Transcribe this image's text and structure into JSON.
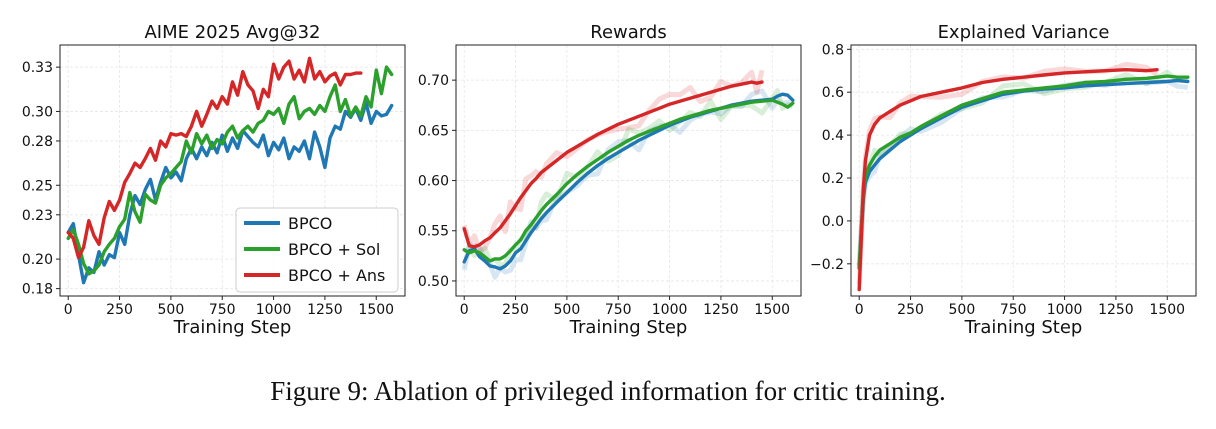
{
  "caption": "Figure 9: Ablation of privileged information for critic training.",
  "colors": {
    "BPCO": "#1f77b4",
    "BPCO + Sol": "#2ca02c",
    "BPCO + Ans": "#d62728"
  },
  "chart_data": [
    {
      "type": "line",
      "title": "AIME 2025 Avg@32",
      "xlabel": "Training Step",
      "ylabel": "",
      "xlim": [
        -40,
        1640
      ],
      "ylim": [
        0.175,
        0.345
      ],
      "xticks": [
        0,
        250,
        500,
        750,
        1000,
        1250,
        1500
      ],
      "yticks": [
        0.18,
        0.2,
        0.23,
        0.25,
        0.28,
        0.3,
        0.33
      ],
      "ytick_labels": [
        "0.18",
        "0.20",
        "0.23",
        "0.25",
        "0.28",
        "0.30",
        "0.33"
      ],
      "grid": true,
      "legend": "lower-right",
      "series": [
        {
          "name": "BPCO",
          "x": [
            0,
            25,
            50,
            75,
            100,
            125,
            150,
            175,
            200,
            225,
            250,
            275,
            300,
            325,
            350,
            375,
            400,
            425,
            450,
            475,
            500,
            525,
            550,
            575,
            600,
            625,
            650,
            675,
            700,
            725,
            750,
            775,
            800,
            825,
            850,
            875,
            900,
            925,
            950,
            975,
            1000,
            1025,
            1050,
            1075,
            1100,
            1125,
            1150,
            1175,
            1200,
            1225,
            1250,
            1275,
            1300,
            1325,
            1350,
            1375,
            1400,
            1425,
            1450,
            1475,
            1500,
            1525,
            1550,
            1575
          ],
          "y": [
            0.218,
            0.224,
            0.203,
            0.184,
            0.194,
            0.191,
            0.205,
            0.196,
            0.203,
            0.201,
            0.218,
            0.21,
            0.23,
            0.243,
            0.237,
            0.247,
            0.254,
            0.24,
            0.252,
            0.262,
            0.255,
            0.259,
            0.253,
            0.268,
            0.275,
            0.268,
            0.276,
            0.27,
            0.279,
            0.272,
            0.284,
            0.273,
            0.282,
            0.275,
            0.287,
            0.283,
            0.279,
            0.276,
            0.284,
            0.27,
            0.279,
            0.274,
            0.282,
            0.268,
            0.276,
            0.273,
            0.28,
            0.268,
            0.286,
            0.276,
            0.262,
            0.282,
            0.29,
            0.288,
            0.3,
            0.296,
            0.302,
            0.294,
            0.306,
            0.292,
            0.3,
            0.297,
            0.298,
            0.304
          ]
        },
        {
          "name": "BPCO + Sol",
          "x": [
            0,
            25,
            50,
            75,
            100,
            125,
            150,
            175,
            200,
            225,
            250,
            275,
            300,
            325,
            350,
            375,
            400,
            425,
            450,
            475,
            500,
            525,
            550,
            575,
            600,
            625,
            650,
            675,
            700,
            725,
            750,
            775,
            800,
            825,
            850,
            875,
            900,
            925,
            950,
            975,
            1000,
            1025,
            1050,
            1075,
            1100,
            1125,
            1150,
            1175,
            1200,
            1225,
            1250,
            1275,
            1300,
            1325,
            1350,
            1375,
            1400,
            1425,
            1450,
            1475,
            1500,
            1525,
            1550,
            1575
          ],
          "y": [
            0.214,
            0.22,
            0.21,
            0.197,
            0.19,
            0.192,
            0.196,
            0.205,
            0.21,
            0.214,
            0.222,
            0.227,
            0.245,
            0.232,
            0.225,
            0.244,
            0.24,
            0.238,
            0.25,
            0.255,
            0.258,
            0.262,
            0.266,
            0.28,
            0.272,
            0.285,
            0.278,
            0.284,
            0.275,
            0.281,
            0.278,
            0.286,
            0.29,
            0.282,
            0.287,
            0.29,
            0.286,
            0.292,
            0.294,
            0.3,
            0.298,
            0.302,
            0.292,
            0.305,
            0.31,
            0.295,
            0.3,
            0.302,
            0.298,
            0.304,
            0.3,
            0.31,
            0.318,
            0.3,
            0.308,
            0.297,
            0.303,
            0.297,
            0.31,
            0.303,
            0.328,
            0.312,
            0.33,
            0.325
          ]
        },
        {
          "name": "BPCO + Ans",
          "x": [
            0,
            25,
            50,
            75,
            100,
            125,
            150,
            175,
            200,
            225,
            250,
            275,
            300,
            325,
            350,
            375,
            400,
            425,
            450,
            475,
            500,
            525,
            550,
            575,
            600,
            625,
            650,
            675,
            700,
            725,
            750,
            775,
            800,
            825,
            850,
            875,
            900,
            925,
            950,
            975,
            1000,
            1025,
            1050,
            1075,
            1100,
            1125,
            1150,
            1175,
            1200,
            1225,
            1250,
            1275,
            1300,
            1325,
            1350,
            1375,
            1400,
            1425
          ],
          "y": [
            0.218,
            0.214,
            0.201,
            0.208,
            0.226,
            0.216,
            0.21,
            0.228,
            0.239,
            0.233,
            0.24,
            0.252,
            0.258,
            0.265,
            0.262,
            0.268,
            0.275,
            0.267,
            0.28,
            0.276,
            0.285,
            0.284,
            0.285,
            0.283,
            0.29,
            0.3,
            0.29,
            0.298,
            0.307,
            0.302,
            0.31,
            0.305,
            0.32,
            0.311,
            0.327,
            0.318,
            0.314,
            0.302,
            0.315,
            0.31,
            0.332,
            0.322,
            0.33,
            0.334,
            0.322,
            0.328,
            0.32,
            0.336,
            0.322,
            0.327,
            0.32,
            0.324,
            0.326,
            0.318,
            0.325,
            0.325,
            0.326,
            0.326
          ]
        }
      ]
    },
    {
      "type": "line",
      "title": "Rewards",
      "xlabel": "Training Step",
      "ylabel": "",
      "xlim": [
        -40,
        1640
      ],
      "ylim": [
        0.485,
        0.735
      ],
      "xticks": [
        0,
        250,
        500,
        750,
        1000,
        1250,
        1500
      ],
      "yticks": [
        0.5,
        0.55,
        0.6,
        0.65,
        0.7
      ],
      "ytick_labels": [
        "0.50",
        "0.55",
        "0.60",
        "0.65",
        "0.70"
      ],
      "grid": true,
      "series": [
        {
          "name": "BPCO",
          "x": [
            0,
            25,
            50,
            75,
            100,
            125,
            150,
            175,
            200,
            225,
            250,
            275,
            300,
            325,
            350,
            375,
            400,
            450,
            500,
            550,
            600,
            650,
            700,
            750,
            800,
            850,
            900,
            950,
            1000,
            1050,
            1100,
            1150,
            1200,
            1250,
            1300,
            1350,
            1400,
            1450,
            1500,
            1525,
            1550,
            1575,
            1600
          ],
          "y": [
            0.519,
            0.53,
            0.532,
            0.524,
            0.52,
            0.515,
            0.514,
            0.512,
            0.515,
            0.52,
            0.528,
            0.532,
            0.54,
            0.548,
            0.555,
            0.562,
            0.568,
            0.578,
            0.588,
            0.598,
            0.607,
            0.615,
            0.622,
            0.628,
            0.634,
            0.64,
            0.645,
            0.65,
            0.655,
            0.659,
            0.663,
            0.666,
            0.669,
            0.672,
            0.675,
            0.677,
            0.679,
            0.68,
            0.681,
            0.684,
            0.686,
            0.685,
            0.68
          ]
        },
        {
          "name": "BPCO + Sol",
          "x": [
            0,
            25,
            50,
            75,
            100,
            125,
            150,
            175,
            200,
            225,
            250,
            275,
            300,
            325,
            350,
            375,
            400,
            450,
            500,
            550,
            600,
            650,
            700,
            750,
            800,
            850,
            900,
            950,
            1000,
            1050,
            1100,
            1150,
            1200,
            1250,
            1300,
            1350,
            1400,
            1450,
            1500,
            1525,
            1550,
            1575,
            1600
          ],
          "y": [
            0.531,
            0.528,
            0.53,
            0.528,
            0.524,
            0.52,
            0.522,
            0.522,
            0.525,
            0.53,
            0.536,
            0.541,
            0.55,
            0.556,
            0.563,
            0.57,
            0.576,
            0.586,
            0.597,
            0.606,
            0.614,
            0.621,
            0.628,
            0.634,
            0.64,
            0.645,
            0.649,
            0.653,
            0.657,
            0.661,
            0.664,
            0.667,
            0.67,
            0.672,
            0.674,
            0.676,
            0.678,
            0.679,
            0.68,
            0.678,
            0.676,
            0.673,
            0.677
          ]
        },
        {
          "name": "BPCO + Ans",
          "x": [
            0,
            25,
            50,
            75,
            100,
            125,
            150,
            175,
            200,
            225,
            250,
            275,
            300,
            325,
            350,
            375,
            400,
            450,
            500,
            550,
            600,
            650,
            700,
            750,
            800,
            850,
            900,
            950,
            1000,
            1050,
            1100,
            1150,
            1200,
            1250,
            1300,
            1350,
            1400,
            1425,
            1450
          ],
          "y": [
            0.552,
            0.535,
            0.534,
            0.536,
            0.54,
            0.543,
            0.548,
            0.553,
            0.56,
            0.567,
            0.575,
            0.583,
            0.59,
            0.597,
            0.602,
            0.608,
            0.612,
            0.62,
            0.628,
            0.634,
            0.64,
            0.646,
            0.651,
            0.656,
            0.66,
            0.664,
            0.668,
            0.672,
            0.676,
            0.679,
            0.682,
            0.685,
            0.688,
            0.691,
            0.694,
            0.696,
            0.698,
            0.697,
            0.698
          ]
        }
      ]
    },
    {
      "type": "line",
      "title": "Explained Variance",
      "xlabel": "Training Step",
      "ylabel": "",
      "xlim": [
        -40,
        1640
      ],
      "ylim": [
        -0.35,
        0.82
      ],
      "xticks": [
        0,
        250,
        500,
        750,
        1000,
        1250,
        1500
      ],
      "yticks": [
        -0.2,
        0.0,
        0.2,
        0.4,
        0.6,
        0.8
      ],
      "ytick_labels": [
        "−0.2",
        "0.0",
        "0.2",
        "0.4",
        "0.6",
        "0.8"
      ],
      "grid": true,
      "series": [
        {
          "name": "BPCO",
          "x": [
            0,
            10,
            20,
            30,
            50,
            75,
            100,
            150,
            200,
            250,
            300,
            400,
            500,
            600,
            700,
            800,
            900,
            1000,
            1100,
            1200,
            1300,
            1400,
            1500,
            1550,
            1600
          ],
          "y": [
            -0.22,
            -0.05,
            0.1,
            0.18,
            0.23,
            0.26,
            0.29,
            0.33,
            0.37,
            0.4,
            0.43,
            0.48,
            0.53,
            0.56,
            0.59,
            0.605,
            0.615,
            0.62,
            0.63,
            0.635,
            0.64,
            0.645,
            0.65,
            0.655,
            0.65
          ]
        },
        {
          "name": "BPCO + Sol",
          "x": [
            0,
            10,
            20,
            30,
            50,
            75,
            100,
            150,
            200,
            250,
            300,
            400,
            500,
            600,
            700,
            800,
            900,
            1000,
            1100,
            1200,
            1300,
            1400,
            1500,
            1550,
            1600
          ],
          "y": [
            -0.22,
            -0.04,
            0.12,
            0.21,
            0.26,
            0.3,
            0.33,
            0.36,
            0.39,
            0.41,
            0.44,
            0.49,
            0.54,
            0.57,
            0.6,
            0.61,
            0.62,
            0.63,
            0.645,
            0.65,
            0.66,
            0.665,
            0.675,
            0.67,
            0.67
          ]
        },
        {
          "name": "BPCO + Ans",
          "x": [
            0,
            10,
            20,
            30,
            50,
            75,
            100,
            150,
            200,
            250,
            300,
            400,
            500,
            600,
            700,
            800,
            900,
            1000,
            1100,
            1200,
            1300,
            1400,
            1450
          ],
          "y": [
            -0.32,
            -0.08,
            0.15,
            0.28,
            0.4,
            0.45,
            0.48,
            0.51,
            0.54,
            0.56,
            0.58,
            0.6,
            0.62,
            0.645,
            0.66,
            0.67,
            0.68,
            0.69,
            0.695,
            0.7,
            0.705,
            0.7,
            0.705
          ]
        }
      ]
    }
  ]
}
